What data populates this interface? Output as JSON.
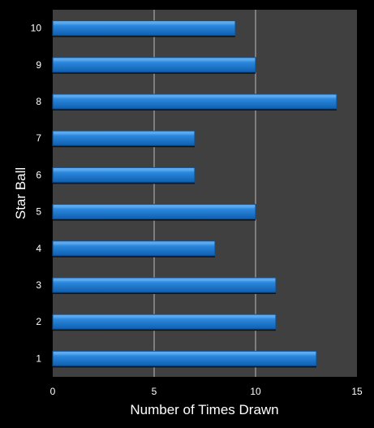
{
  "colors": {
    "background": "#000000",
    "plot_bg": "#404040",
    "grid": "#bdbdbd",
    "bar": "#1874cd",
    "bar_light": "#5aaaf2",
    "bar_dark": "#0d4f93",
    "text": "#ffffff"
  },
  "chart_data": {
    "type": "bar",
    "orientation": "horizontal",
    "categories": [
      "1",
      "2",
      "3",
      "4",
      "5",
      "6",
      "7",
      "8",
      "9",
      "10"
    ],
    "values": [
      13,
      11,
      11,
      8,
      10,
      7,
      7,
      14,
      10,
      9
    ],
    "xlabel": "Number of Times Drawn",
    "ylabel": "Star Ball",
    "xlim": [
      0,
      15
    ],
    "xticks": [
      "0",
      "5",
      "10",
      "15"
    ],
    "grid": "vertical"
  }
}
